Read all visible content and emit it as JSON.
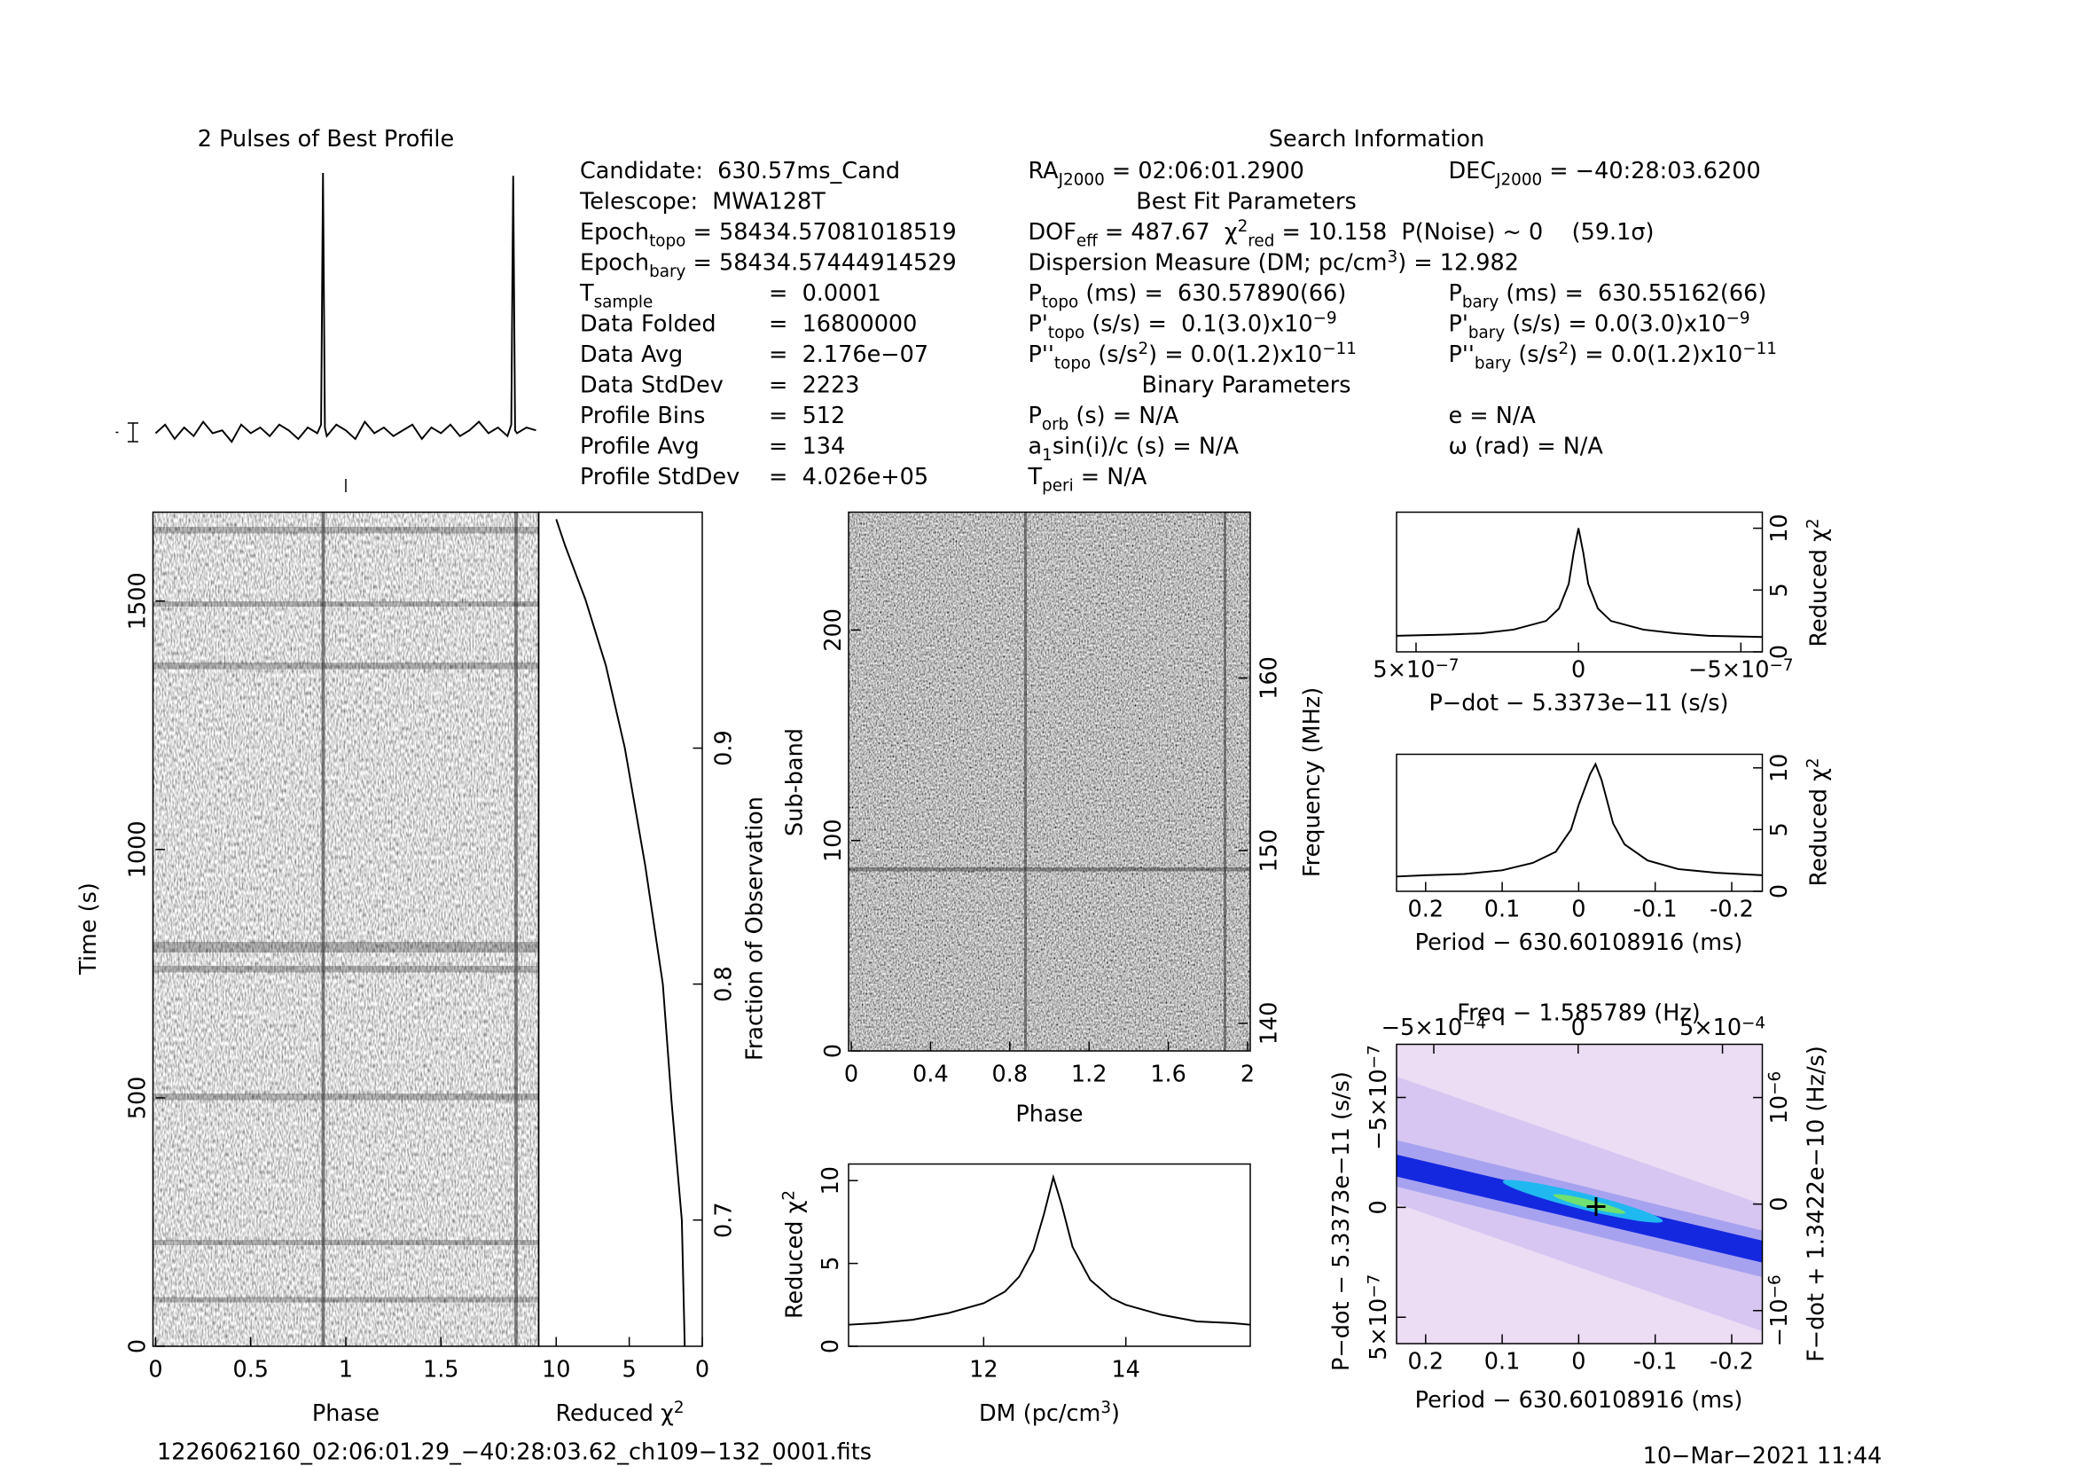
{
  "chart_data": [
    {
      "type": "line",
      "title": "2 Pulses of Best Profile",
      "x": [
        0,
        0.05,
        0.1,
        0.15,
        0.2,
        0.25,
        0.3,
        0.35,
        0.4,
        0.45,
        0.5,
        0.55,
        0.6,
        0.65,
        0.7,
        0.75,
        0.8,
        0.85,
        0.87,
        0.88,
        0.89,
        0.9,
        0.95,
        1,
        1.05,
        1.1,
        1.15,
        1.2,
        1.25,
        1.3,
        1.35,
        1.4,
        1.45,
        1.5,
        1.55,
        1.6,
        1.65,
        1.7,
        1.75,
        1.8,
        1.85,
        1.87,
        1.88,
        1.89,
        1.9,
        1.95,
        2
      ],
      "values": [
        0.09,
        0.12,
        0.07,
        0.11,
        0.08,
        0.13,
        0.09,
        0.1,
        0.06,
        0.12,
        0.09,
        0.11,
        0.08,
        0.12,
        0.1,
        0.07,
        0.11,
        0.09,
        0.12,
        1.0,
        0.11,
        0.08,
        0.12,
        0.1,
        0.07,
        0.13,
        0.09,
        0.11,
        0.08,
        0.1,
        0.12,
        0.07,
        0.11,
        0.09,
        0.12,
        0.08,
        0.1,
        0.13,
        0.09,
        0.11,
        0.08,
        0.12,
        0.99,
        0.1,
        0.09,
        0.11,
        0.1
      ],
      "xlim": [
        0,
        2
      ],
      "ylim": [
        0,
        1
      ],
      "color": "#000000"
    },
    {
      "type": "image",
      "x_label": [
        {
          "text": "Phase"
        }
      ],
      "y_label": [
        {
          "text": "Time (s)"
        }
      ],
      "xlim": [
        0,
        2
      ],
      "xticks": [
        0,
        0.5,
        1,
        1.5
      ],
      "ylim": [
        0,
        1679
      ],
      "yticks": [
        0,
        500,
        1000,
        1500
      ]
    },
    {
      "type": "line",
      "x_label": [
        {
          "text": "Reduced χ"
        },
        {
          "text": "2",
          "shift": "sup"
        }
      ],
      "y2_label": [
        {
          "text": "Fraction of Observation"
        }
      ],
      "y": [
        0.6465,
        0.7,
        0.75,
        0.8,
        0.85,
        0.9,
        0.935,
        0.963,
        0.986,
        0.997
      ],
      "values": [
        1.2,
        1.4,
        2.1,
        2.7,
        3.9,
        5.3,
        6.6,
        8.0,
        9.4,
        10.0
      ],
      "xlim": [
        11.2,
        0
      ],
      "xticks": [
        10,
        5,
        0
      ],
      "y2lim": [
        0.6465,
        1.0
      ],
      "y2ticks": [
        0.7,
        0.8,
        0.9
      ],
      "color": "#000000"
    },
    {
      "type": "image",
      "x_label": [
        {
          "text": "Phase"
        }
      ],
      "y_label": [
        {
          "text": "Sub-band"
        }
      ],
      "y2_label": [
        {
          "text": "Frequency (MHz)"
        }
      ],
      "xlim": [
        0,
        2
      ],
      "xticks": [
        0,
        0.4,
        0.8,
        1.2,
        1.6,
        2
      ],
      "ylim": [
        0,
        256
      ],
      "yticks": [
        0,
        100,
        200
      ],
      "y2lim": [
        138.4,
        169.6
      ],
      "y2ticks": [
        140,
        150,
        160
      ]
    },
    {
      "type": "line",
      "x_label": [
        {
          "text": "DM (pc/cm"
        },
        {
          "text": "3",
          "shift": "sup"
        },
        {
          "text": ")"
        }
      ],
      "y_label": [
        {
          "text": "Reduced χ"
        },
        {
          "text": "2",
          "shift": "sup"
        }
      ],
      "x": [
        10.1,
        10.5,
        11,
        11.5,
        12,
        12.3,
        12.5,
        12.7,
        12.85,
        12.98,
        13.1,
        13.25,
        13.5,
        13.8,
        14,
        14.5,
        15,
        15.5,
        15.75
      ],
      "values": [
        1.3,
        1.4,
        1.6,
        2.0,
        2.6,
        3.3,
        4.2,
        5.8,
        8,
        10.2,
        8.5,
        6,
        4,
        2.9,
        2.5,
        1.9,
        1.5,
        1.4,
        1.3
      ],
      "xlim": [
        10.1,
        15.75
      ],
      "xticks": [
        12,
        14
      ],
      "ylim": [
        0,
        11
      ],
      "yticks": [
        0,
        5,
        10
      ],
      "color": "#000000"
    },
    {
      "type": "line",
      "x_label": [
        {
          "text": "P−dot − 5.3373e−11 (s/s)"
        }
      ],
      "y_label": [
        {
          "text": "Reduced χ"
        },
        {
          "text": "2",
          "shift": "sup"
        }
      ],
      "x": [
        5.6e-07,
        4e-07,
        3e-07,
        2e-07,
        1e-07,
        6e-08,
        3e-08,
        1.5e-08,
        0,
        -1.5e-08,
        -3e-08,
        -6e-08,
        -1e-07,
        -2e-07,
        -3e-07,
        -4e-07,
        -5.66e-07
      ],
      "values": [
        1.3,
        1.4,
        1.5,
        1.8,
        2.5,
        3.5,
        5.5,
        8,
        10,
        8,
        5.5,
        3.5,
        2.5,
        1.8,
        1.5,
        1.3,
        1.2
      ],
      "xlim": [
        5.6e-07,
        -5.66e-07
      ],
      "xticks": [
        {
          "value": 5e-07,
          "label": "5×10",
          "sup": "−7"
        },
        0,
        {
          "value": -5e-07,
          "label": "−5×10",
          "sup": "−7"
        }
      ],
      "ylim": [
        0,
        11.3
      ],
      "yticks": [
        0,
        5,
        10
      ],
      "color": "#000000"
    },
    {
      "type": "line",
      "x_label": [
        {
          "text": "Period − 630.60108916 (ms)"
        }
      ],
      "y_label": [
        {
          "text": "Reduced χ"
        },
        {
          "text": "2",
          "shift": "sup"
        }
      ],
      "x": [
        0.238,
        0.2,
        0.15,
        0.1,
        0.06,
        0.03,
        0.01,
        0,
        -0.015,
        -0.022,
        -0.03,
        -0.045,
        -0.06,
        -0.09,
        -0.13,
        -0.18,
        -0.24
      ],
      "values": [
        1.2,
        1.3,
        1.4,
        1.7,
        2.3,
        3.2,
        5,
        7,
        9.5,
        10.3,
        9,
        5.5,
        3.8,
        2.5,
        1.8,
        1.5,
        1.3
      ],
      "xlim": [
        0.238,
        -0.24
      ],
      "xticks": [
        0.2,
        0.1,
        0,
        -0.1,
        -0.2
      ],
      "ylim": [
        0,
        11.1
      ],
      "yticks": [
        0,
        5,
        10
      ],
      "color": "#000000"
    },
    {
      "type": "image",
      "x_label": [
        {
          "text": "Period − 630.60108916 (ms)"
        }
      ],
      "x2_label": [
        {
          "text": "Freq − 1.585789 (Hz)"
        }
      ],
      "y_label": [
        {
          "text": "P−dot − 5.3373e−11 (s/s)"
        }
      ],
      "y2_label": [
        {
          "text": "F−dot + 1.3422e−10 (Hz/s)"
        }
      ],
      "xlim": [
        0.238,
        -0.24
      ],
      "xticks": [
        0.2,
        0.1,
        0,
        -0.1,
        -0.2
      ],
      "x2lim": [
        -0.000629,
        0.000638
      ],
      "x2ticks": [
        {
          "value": -0.0005,
          "label": "−5×10",
          "sup": "−4"
        },
        0,
        {
          "value": 0.0005,
          "label": "5×10",
          "sup": "−4"
        }
      ],
      "ylim": [
        6.2e-07,
        -7.42e-07
      ],
      "yticks": [
        {
          "value": -5e-07,
          "label": "−5×10",
          "sup": "−7"
        },
        0,
        {
          "value": 5e-07,
          "label": "5×10",
          "sup": "−7"
        }
      ],
      "y2lim": [
        -1.31e-06,
        1.5e-06
      ],
      "y2ticks": [
        {
          "value": 1e-06,
          "label": "10",
          "sup": "−6"
        },
        0,
        {
          "value": -1e-06,
          "label": "−10",
          "sup": "−6"
        }
      ]
    }
  ],
  "search_info": {
    "title": "Search Information",
    "left": [
      {
        "label": [
          {
            "text": "Candidate:  630.57ms_Cand"
          }
        ]
      },
      {
        "label": [
          {
            "text": "Telescope:  MWA128T"
          }
        ]
      },
      {
        "label": [
          {
            "text": "Epoch"
          },
          {
            "text": "topo",
            "shift": "sub"
          },
          {
            "text": " = 58434.57081018519"
          }
        ]
      },
      {
        "label": [
          {
            "text": "Epoch"
          },
          {
            "text": "bary",
            "shift": "sub"
          },
          {
            "text": " = 58434.57444914529"
          }
        ]
      },
      {
        "label": [
          {
            "text": "T"
          },
          {
            "text": "sample",
            "shift": "sub"
          }
        ],
        "value": "=  0.0001"
      },
      {
        "label": [
          {
            "text": "Data Folded"
          }
        ],
        "value": "=  16800000"
      },
      {
        "label": [
          {
            "text": "Data Avg"
          }
        ],
        "value": "=  2.176e−07"
      },
      {
        "label": [
          {
            "text": "Data StdDev"
          }
        ],
        "value": "=  2223"
      },
      {
        "label": [
          {
            "text": "Profile Bins"
          }
        ],
        "value": "=  512"
      },
      {
        "label": [
          {
            "text": "Profile Avg"
          }
        ],
        "value": "=  134"
      },
      {
        "label": [
          {
            "text": "Profile StdDev"
          }
        ],
        "value": "=  4.026e+05"
      }
    ],
    "middle": [
      [
        {
          "text": "RA"
        },
        {
          "text": "J2000",
          "shift": "sub"
        },
        {
          "text": " = 02:06:01.2900"
        }
      ],
      [
        {
          "text": "Best Fit Parameters"
        }
      ],
      [
        {
          "text": "DOF"
        },
        {
          "text": "eff",
          "shift": "sub"
        },
        {
          "text": " = 487.67  χ"
        },
        {
          "text": "2",
          "shift": "sup"
        },
        {
          "text": "red",
          "shift": "sub"
        },
        {
          "text": " = 10.158  P(Noise) ~ 0    (59.1σ)"
        }
      ],
      [
        {
          "text": "Dispersion Measure (DM; pc/cm"
        },
        {
          "text": "3",
          "shift": "sup"
        },
        {
          "text": ") = 12.982"
        }
      ],
      [
        {
          "text": "P"
        },
        {
          "text": "topo",
          "shift": "sub"
        },
        {
          "text": " (ms) =  630.57890(66)"
        }
      ],
      [
        {
          "text": "P'"
        },
        {
          "text": "topo",
          "shift": "sub"
        },
        {
          "text": " (s/s) =  0.1(3.0)x10"
        },
        {
          "text": "−9",
          "shift": "sup"
        }
      ],
      [
        {
          "text": "P''"
        },
        {
          "text": "topo",
          "shift": "sub"
        },
        {
          "text": " (s/s"
        },
        {
          "text": "2",
          "shift": "sup"
        },
        {
          "text": ") = 0.0(1.2)x10"
        },
        {
          "text": "−11",
          "shift": "sup"
        }
      ],
      [
        {
          "text": "Binary Parameters"
        }
      ],
      [
        {
          "text": "P"
        },
        {
          "text": "orb",
          "shift": "sub"
        },
        {
          "text": " (s) = N/A"
        }
      ],
      [
        {
          "text": "a"
        },
        {
          "text": "1",
          "shift": "sub"
        },
        {
          "text": "sin(i)/c (s) = N/A"
        }
      ],
      [
        {
          "text": "T"
        },
        {
          "text": "peri",
          "shift": "sub"
        },
        {
          "text": " = N/A"
        }
      ]
    ],
    "right": [
      [
        {
          "text": "DEC"
        },
        {
          "text": "J2000",
          "shift": "sub"
        },
        {
          "text": " = −40:28:03.6200"
        }
      ],
      [
        {
          "text": "P"
        },
        {
          "text": "bary",
          "shift": "sub"
        },
        {
          "text": " (ms) =  630.55162(66)"
        }
      ],
      [
        {
          "text": "P'"
        },
        {
          "text": "bary",
          "shift": "sub"
        },
        {
          "text": " (s/s) = 0.0(3.0)x10"
        },
        {
          "text": "−9",
          "shift": "sup"
        }
      ],
      [
        {
          "text": "P''"
        },
        {
          "text": "bary",
          "shift": "sub"
        },
        {
          "text": " (s/s"
        },
        {
          "text": "2",
          "shift": "sup"
        },
        {
          "text": ") = 0.0(1.2)x10"
        },
        {
          "text": "−11",
          "shift": "sup"
        }
      ],
      [
        {
          "text": "e = N/A"
        }
      ],
      [
        {
          "text": "ω (rad) = N/A"
        }
      ]
    ]
  },
  "footer": {
    "filename": "1226062160_02:06:01.29_−40:28:03.62_ch109−132_0001.fits",
    "date": "10−Mar−2021 11:44"
  }
}
